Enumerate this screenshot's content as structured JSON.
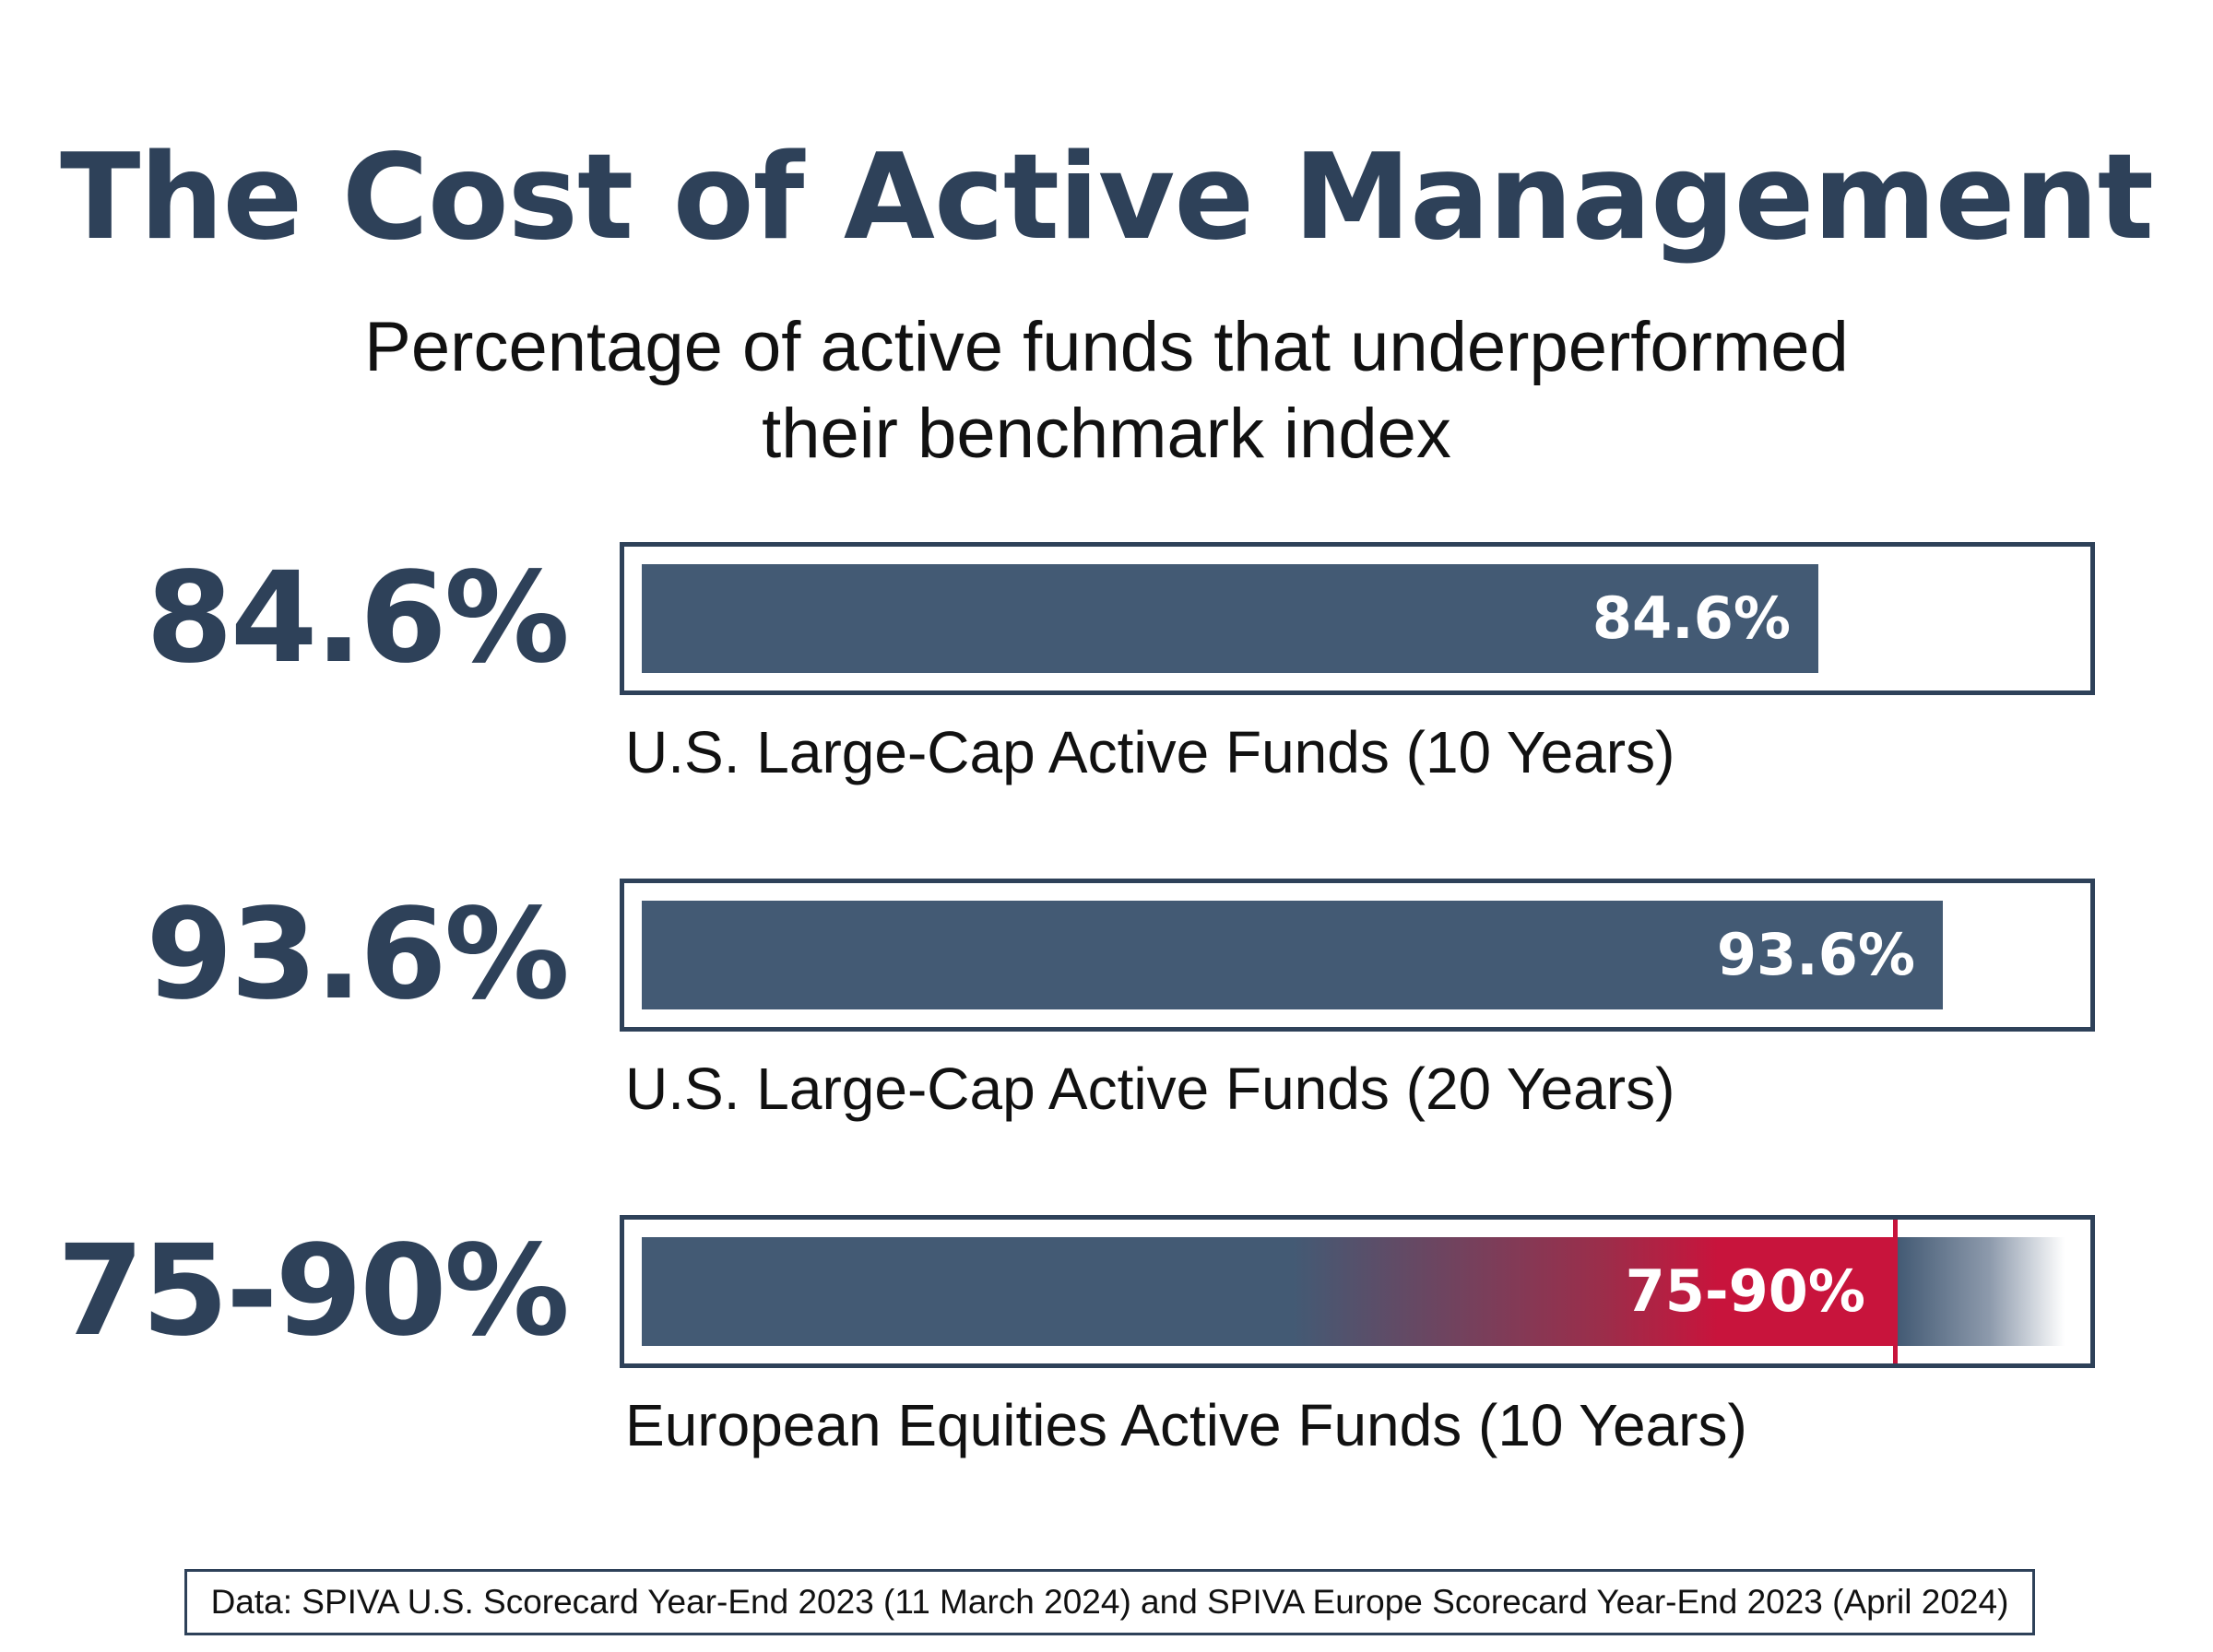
{
  "chart_data": {
    "type": "bar",
    "orientation": "horizontal",
    "title": "The Cost of Active Management",
    "subtitle_lines": [
      "Percentage of active funds that underperformed",
      "their benchmark index"
    ],
    "xlim": [
      0,
      100
    ],
    "unit": "%",
    "categories": [
      "U.S. Large-Cap Active Funds (10 Years)",
      "U.S. Large-Cap Active Funds (20 Years)",
      "European Equities Active Funds (10 Years)"
    ],
    "values": [
      84.6,
      93.6,
      [
        75,
        90
      ]
    ],
    "value_labels": [
      "84.6%",
      "93.6%",
      "75-90%"
    ],
    "bar_label_colors": [
      "#435a74",
      "#435a74",
      "#c8143c"
    ],
    "grid": false,
    "legend": "none"
  },
  "source": "Data: SPIVA U.S. Scorecard Year-End 2023 (11 March 2024) and SPIVA Europe Scorecard Year-End 2023 (April 2024)",
  "colors": {
    "title": "#2e4159",
    "bar": "#435a74",
    "accent_range": "#c8143c",
    "frame": "#2e4159"
  }
}
